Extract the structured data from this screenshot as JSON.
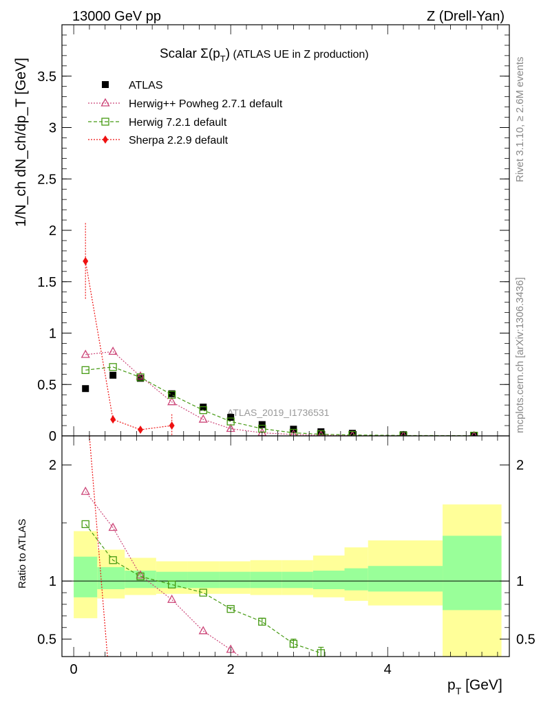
{
  "header": {
    "left": "13000 GeV pp",
    "right": "Z (Drell-Yan)"
  },
  "side_labels": {
    "rivet": "Rivet 3.1.10, ≥ 2.6M events",
    "mcplots": "mcplots.cern.ch [arXiv:1306.3436]"
  },
  "colors": {
    "data": "#000000",
    "herwigpp": "#cc4477",
    "herwig7": "#449911",
    "sherpa": "#ee1111",
    "band_outer": "#ffff99",
    "band_inner": "#99ff99"
  },
  "chart_data": [
    {
      "type": "scatter",
      "title_main": "Scalar Σ(p",
      "title_sub": "T",
      "title_paren": ")",
      "title_rest": " (ATLAS UE in Z production)",
      "watermark": "ATLAS_2019_I1736531",
      "ylabel": "1/N_ch dN_ch/dp_T [GeV]",
      "xlim": [
        -0.15,
        5.55
      ],
      "ylim": [
        0,
        4.0
      ],
      "yticks": [
        0,
        0.5,
        1,
        1.5,
        2,
        2.5,
        3,
        3.5
      ],
      "ytick_labels": [
        "0",
        "0.5",
        "1",
        "1.5",
        "2",
        "2.5",
        "3",
        "3.5"
      ],
      "legend": [
        "ATLAS",
        "Herwig++ Powheg 2.7.1 default",
        "Herwig 7.2.1 default",
        "Sherpa 2.2.9 default"
      ],
      "series": [
        {
          "name": "ATLAS",
          "x": [
            0.15,
            0.5,
            0.85,
            1.25,
            1.65,
            2.0,
            2.4,
            2.8,
            3.15,
            3.55,
            4.2,
            5.1
          ],
          "y": [
            0.46,
            0.59,
            0.56,
            0.41,
            0.28,
            0.18,
            0.11,
            0.065,
            0.04,
            0.025,
            0.012,
            0.005
          ]
        },
        {
          "name": "Herwig++ Powheg 2.7.1 default",
          "x": [
            0.15,
            0.5,
            0.85,
            1.25,
            1.65,
            2.0,
            2.4,
            2.8,
            3.15,
            3.55,
            4.2,
            5.1
          ],
          "y": [
            0.79,
            0.82,
            0.58,
            0.33,
            0.16,
            0.07,
            0.03,
            0.013,
            0.006,
            0.003,
            0.001,
            0.0003
          ]
        },
        {
          "name": "Herwig 7.2.1 default",
          "x": [
            0.15,
            0.5,
            0.85,
            1.25,
            1.65,
            2.0,
            2.4,
            2.8,
            3.15,
            3.55,
            4.2,
            5.1
          ],
          "y": [
            0.64,
            0.67,
            0.57,
            0.4,
            0.25,
            0.14,
            0.07,
            0.03,
            0.016,
            0.009,
            0.004,
            0.002
          ]
        },
        {
          "name": "Sherpa 2.2.9 default",
          "x": [
            0.15,
            0.5,
            0.85,
            1.25
          ],
          "y": [
            1.7,
            0.16,
            0.06,
            0.1
          ],
          "err": [
            0.37,
            0.04,
            0.03,
            0.11
          ]
        }
      ]
    },
    {
      "type": "scatter",
      "ylabel": "Ratio to ATLAS",
      "xlabel_main": "p",
      "xlabel_sub": "T",
      "xlabel_unit": " [GeV]",
      "xlim": [
        -0.15,
        5.55
      ],
      "ylim": [
        0.35,
        2.25
      ],
      "yticks": [
        0.5,
        1,
        2
      ],
      "ytick_labels": [
        "0.5",
        "1",
        "2"
      ],
      "xticks": [
        0,
        2,
        4
      ],
      "xtick_labels": [
        "0",
        "2",
        "4"
      ],
      "bands": {
        "edges": [
          0,
          0.3,
          0.65,
          1.05,
          1.45,
          1.85,
          2.25,
          2.65,
          3.05,
          3.45,
          3.75,
          4.7,
          5.45
        ],
        "outer_lo": [
          0.68,
          0.85,
          0.88,
          0.89,
          0.89,
          0.89,
          0.88,
          0.88,
          0.86,
          0.83,
          0.79,
          0.35
        ],
        "outer_hi": [
          1.43,
          1.27,
          1.2,
          1.17,
          1.17,
          1.17,
          1.18,
          1.18,
          1.22,
          1.29,
          1.35,
          1.66
        ],
        "inner_lo": [
          0.86,
          0.93,
          0.94,
          0.94,
          0.94,
          0.94,
          0.94,
          0.94,
          0.93,
          0.92,
          0.91,
          0.75
        ],
        "inner_hi": [
          1.21,
          1.12,
          1.09,
          1.08,
          1.08,
          1.08,
          1.08,
          1.08,
          1.09,
          1.11,
          1.13,
          1.39
        ]
      },
      "series": [
        {
          "name": "Herwig++ Powheg 2.7.1 default",
          "x": [
            0.15,
            0.5,
            0.85,
            1.25,
            1.65,
            2.0,
            2.1
          ],
          "y": [
            1.77,
            1.46,
            1.05,
            0.84,
            0.57,
            0.41,
            0.36
          ]
        },
        {
          "name": "Herwig 7.2.1 default",
          "x": [
            0.15,
            0.5,
            0.85,
            1.25,
            1.65,
            2.0,
            2.4,
            2.8,
            3.15
          ],
          "y": [
            1.49,
            1.18,
            1.04,
            0.97,
            0.9,
            0.76,
            0.65,
            0.46,
            0.38
          ],
          "err": [
            0,
            0,
            0,
            0,
            0,
            0.01,
            0.03,
            0.04,
            0.05
          ]
        },
        {
          "name": "Sherpa 2.2.9 default",
          "x": [
            0.2,
            0.43
          ],
          "y": [
            2.25,
            0.35
          ]
        }
      ]
    }
  ]
}
